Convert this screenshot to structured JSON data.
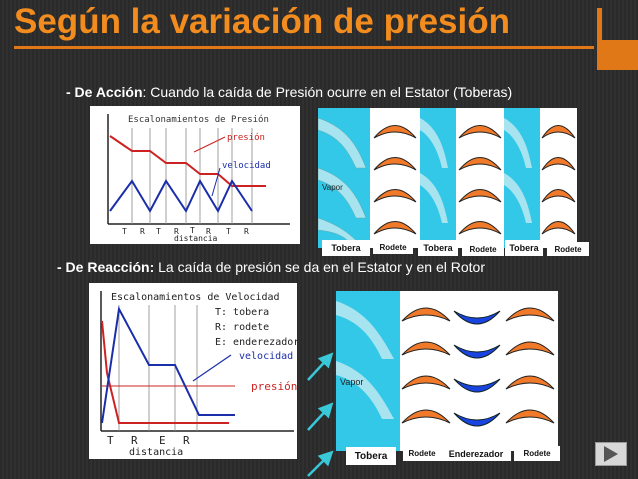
{
  "slide": {
    "title": "Según la variación de presión",
    "accion": {
      "bold": "- De Acción",
      "text": ": Cuando la caída de Presión ocurre en el Estator (Toberas)"
    },
    "reaccion": {
      "bold": "- De Reacción:",
      "text": " La caída de presión se da en el Estator y en el Rotor"
    }
  },
  "chart1": {
    "title": "Escalonamientos de Presión",
    "presion": "presión",
    "velocidad": "velocidad",
    "xlabel": "distancia",
    "ticks": [
      "T",
      "R",
      "T",
      "R",
      "T",
      "R",
      "T",
      "R"
    ]
  },
  "chart2": {
    "title": "Escalonamientos de Velocidad",
    "legend_t": "T: tobera",
    "legend_r": "R: rodete",
    "legend_e": "E: enderezador",
    "velocidad": "velocidad",
    "presion": "presión",
    "xlabel": "distancia",
    "ticks": [
      "T",
      "R",
      "E",
      "R"
    ]
  },
  "turbine1": {
    "vapor": "Vapor",
    "labels": [
      "Tobera",
      "Rodete",
      "Tobera",
      "Rodete",
      "Tobera",
      "Rodete"
    ]
  },
  "turbine2": {
    "vapor": "Vapor",
    "labels": [
      "Tobera",
      "Rodete",
      "Enderezador",
      "Rodete"
    ]
  },
  "colors": {
    "title": "#f28c1e",
    "accent": "#e07818",
    "pressure": "#cc2222",
    "velocity": "#1a2eaa",
    "steam": "#33c8e8"
  },
  "icons": [
    "next-slide-icon",
    "flow-arrow-icon"
  ]
}
